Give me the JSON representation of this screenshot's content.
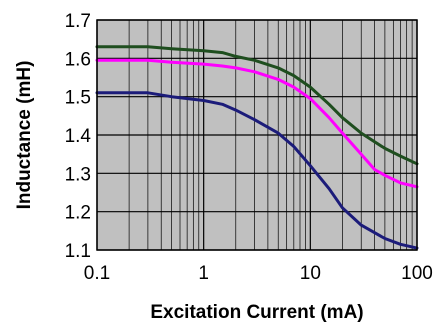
{
  "chart_data": {
    "type": "line",
    "title": "",
    "xlabel": "Excitation Current (mA)",
    "ylabel": "Inductance (mH)",
    "x_scale": "log",
    "xlim": [
      0.1,
      100
    ],
    "ylim": [
      1.1,
      1.7
    ],
    "x_ticks": [
      "0.1",
      "1",
      "10",
      "100"
    ],
    "y_ticks": [
      "1.1",
      "1.2",
      "1.3",
      "1.4",
      "1.5",
      "1.6",
      "1.7"
    ],
    "grid": true,
    "legend": "none",
    "plot_background": "#c0c0c0",
    "series": [
      {
        "color": "#1f4e1f",
        "points": [
          [
            0.1,
            1.63
          ],
          [
            0.2,
            1.63
          ],
          [
            0.3,
            1.63
          ],
          [
            0.5,
            1.625
          ],
          [
            1,
            1.62
          ],
          [
            1.5,
            1.615
          ],
          [
            2,
            1.605
          ],
          [
            3,
            1.595
          ],
          [
            5,
            1.575
          ],
          [
            7,
            1.555
          ],
          [
            10,
            1.525
          ],
          [
            15,
            1.48
          ],
          [
            20,
            1.445
          ],
          [
            30,
            1.405
          ],
          [
            50,
            1.365
          ],
          [
            70,
            1.345
          ],
          [
            100,
            1.325
          ]
        ]
      },
      {
        "color": "#ff00ff",
        "points": [
          [
            0.1,
            1.595
          ],
          [
            0.2,
            1.595
          ],
          [
            0.3,
            1.595
          ],
          [
            0.5,
            1.59
          ],
          [
            1,
            1.585
          ],
          [
            1.5,
            1.58
          ],
          [
            2,
            1.575
          ],
          [
            3,
            1.565
          ],
          [
            5,
            1.545
          ],
          [
            7,
            1.525
          ],
          [
            10,
            1.495
          ],
          [
            15,
            1.445
          ],
          [
            20,
            1.405
          ],
          [
            30,
            1.35
          ],
          [
            40,
            1.31
          ],
          [
            50,
            1.295
          ],
          [
            70,
            1.275
          ],
          [
            100,
            1.265
          ]
        ]
      },
      {
        "color": "#1c1c7a",
        "points": [
          [
            0.1,
            1.51
          ],
          [
            0.2,
            1.51
          ],
          [
            0.3,
            1.51
          ],
          [
            0.5,
            1.5
          ],
          [
            1,
            1.49
          ],
          [
            1.5,
            1.48
          ],
          [
            2,
            1.465
          ],
          [
            3,
            1.44
          ],
          [
            5,
            1.405
          ],
          [
            7,
            1.37
          ],
          [
            10,
            1.32
          ],
          [
            15,
            1.26
          ],
          [
            20,
            1.21
          ],
          [
            30,
            1.165
          ],
          [
            50,
            1.13
          ],
          [
            70,
            1.115
          ],
          [
            100,
            1.105
          ]
        ]
      }
    ]
  }
}
